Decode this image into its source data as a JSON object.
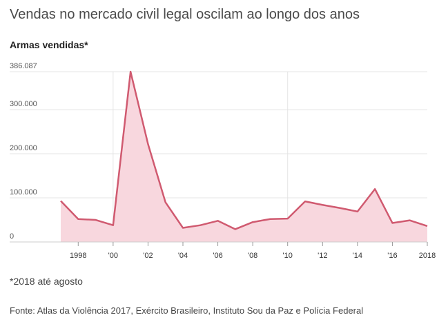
{
  "chart_data": {
    "type": "area",
    "title": "Vendas no mercado civil legal oscilam ao longo dos anos",
    "ylabel": "Armas vendidas*",
    "note": "*2018 até agosto",
    "source": "Fonte: Atlas da Violência 2017, Exército Brasileiro, Instituto Sou da Paz e Polícia Federal",
    "x": [
      1997,
      1998,
      1999,
      2000,
      2001,
      2002,
      2003,
      2004,
      2005,
      2006,
      2007,
      2008,
      2009,
      2010,
      2011,
      2012,
      2013,
      2014,
      2015,
      2016,
      2017,
      2018
    ],
    "values": [
      93000,
      52000,
      50000,
      38000,
      386087,
      222000,
      90000,
      32000,
      38000,
      48000,
      29000,
      45000,
      52000,
      53000,
      92000,
      84000,
      77000,
      69000,
      120000,
      43000,
      49000,
      36000
    ],
    "ylim": [
      0,
      386087
    ],
    "y_ticks": [
      {
        "value": 0,
        "label": "0"
      },
      {
        "value": 100000,
        "label": "100.000"
      },
      {
        "value": 200000,
        "label": "200.000"
      },
      {
        "value": 300000,
        "label": "300.000"
      },
      {
        "value": 386087,
        "label": "386.087"
      }
    ],
    "x_ticks": [
      {
        "value": 1998,
        "label": "1998"
      },
      {
        "value": 2000,
        "label": "'00"
      },
      {
        "value": 2002,
        "label": "'02"
      },
      {
        "value": 2004,
        "label": "'04"
      },
      {
        "value": 2006,
        "label": "'06"
      },
      {
        "value": 2008,
        "label": "'08"
      },
      {
        "value": 2010,
        "label": "'10"
      },
      {
        "value": 2012,
        "label": "'12"
      },
      {
        "value": 2014,
        "label": "'14"
      },
      {
        "value": 2016,
        "label": "'16"
      },
      {
        "value": 2018,
        "label": "2018"
      }
    ],
    "vertical_reference_lines": [
      2000,
      2010
    ],
    "colors": {
      "line": "#d05a70",
      "fill": "#f8d7de",
      "grid": "#e4e4e4",
      "axis": "#cccccc"
    }
  }
}
